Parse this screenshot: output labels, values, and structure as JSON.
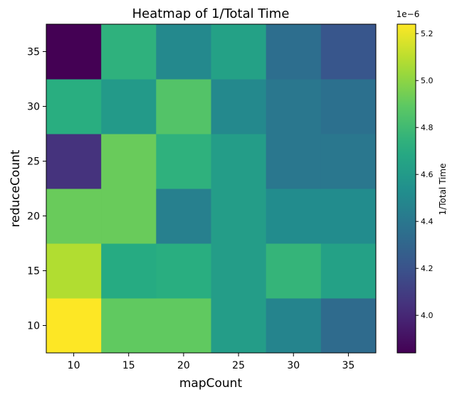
{
  "chart_data": {
    "type": "heatmap",
    "title": "Heatmap of 1/Total Time",
    "xlabel": "mapCount",
    "ylabel": "reduceCount",
    "x": [
      10,
      15,
      20,
      25,
      30,
      35
    ],
    "y": [
      10,
      15,
      20,
      25,
      30,
      35
    ],
    "z_rows_y_ascending": [
      [
        5.24,
        4.9,
        4.9,
        4.62,
        4.47,
        4.33
      ],
      [
        5.08,
        4.7,
        4.72,
        4.62,
        4.76,
        4.64
      ],
      [
        4.92,
        4.92,
        4.45,
        4.62,
        4.52,
        4.52
      ],
      [
        4.05,
        4.92,
        4.74,
        4.62,
        4.4,
        4.4
      ],
      [
        4.72,
        4.6,
        4.86,
        4.5,
        4.4,
        4.36
      ],
      [
        3.84,
        4.74,
        4.5,
        4.64,
        4.35,
        4.22
      ]
    ],
    "colorbar": {
      "label": "1/Total Time",
      "scale_label": "1e−6",
      "ticks": [
        4.0,
        4.2,
        4.4,
        4.6,
        4.8,
        5.0,
        5.2
      ],
      "tick_labels": [
        "4.0",
        "4.2",
        "4.4",
        "4.6",
        "4.8",
        "5.0",
        "5.2"
      ],
      "range": [
        3.84,
        5.24
      ]
    },
    "colormap": "viridis",
    "grid": false
  }
}
